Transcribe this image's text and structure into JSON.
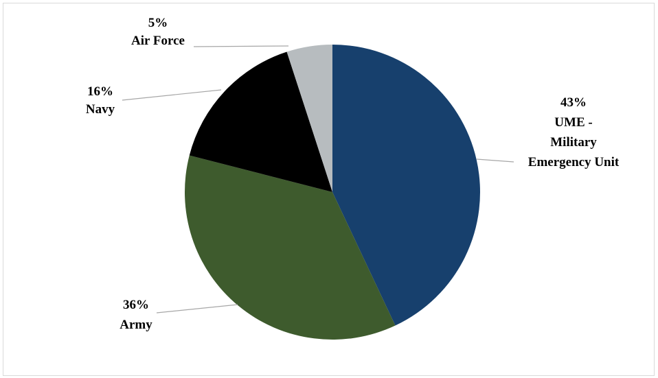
{
  "chart_data": {
    "type": "pie",
    "title": "",
    "start_angle_deg": 0,
    "direction": "clockwise",
    "slices": [
      {
        "value": 43,
        "percent_label": "43%",
        "category_lines": [
          "UME -",
          "Military",
          "Emergency Unit"
        ],
        "color": "#17406D"
      },
      {
        "value": 36,
        "percent_label": "36%",
        "category_lines": [
          "Army"
        ],
        "color": "#3E5B2D"
      },
      {
        "value": 16,
        "percent_label": "16%",
        "category_lines": [
          "Navy"
        ],
        "color": "#000000"
      },
      {
        "value": 5,
        "percent_label": "5%",
        "category_lines": [
          "Air Force"
        ],
        "color": "#B7BCBF"
      }
    ],
    "leader_line_color": "#A6A6A6",
    "legend": "none",
    "data_labels": "outside-with-leader-lines"
  }
}
